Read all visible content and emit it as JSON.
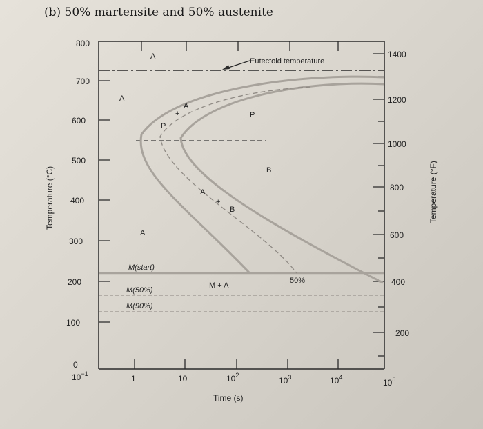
{
  "caption": "(b) 50% martensite and 50% austenite",
  "axes": {
    "x_label": "Time (s)",
    "left_label": "Temperature (°C)",
    "right_label": "Temperature (°F)",
    "left_ticks": [
      "800",
      "700",
      "600",
      "500",
      "400",
      "300",
      "200",
      "100",
      "0"
    ],
    "right_ticks": [
      "1400",
      "1200",
      "1000",
      "800",
      "600",
      "400",
      "200"
    ],
    "x_ticks": [
      {
        "base": "10",
        "exp": "−1"
      },
      {
        "base": "1",
        "exp": ""
      },
      {
        "base": "10",
        "exp": ""
      },
      {
        "base": "10",
        "exp": "2"
      },
      {
        "base": "10",
        "exp": "3"
      },
      {
        "base": "10",
        "exp": "4"
      },
      {
        "base": "10",
        "exp": "5"
      }
    ]
  },
  "labels": {
    "eutectoid": "Eutectoid temperature",
    "a_top": "A",
    "a_left": "A",
    "a_curve": "A",
    "plus_top": "+",
    "p_small": "P",
    "p_big": "P",
    "b_big": "B",
    "a_mid": "A",
    "plus_mid": "+",
    "b_mid": "B",
    "a_low": "A",
    "m_start": "M(start)",
    "m_plus_a": "M + A",
    "m50": "M(50%)",
    "m90": "M(90%)",
    "pct50": "50%"
  },
  "colors": {
    "curve": "#a8a39c",
    "axis": "#2a2a2a",
    "dash": "#3a3a3a"
  }
}
